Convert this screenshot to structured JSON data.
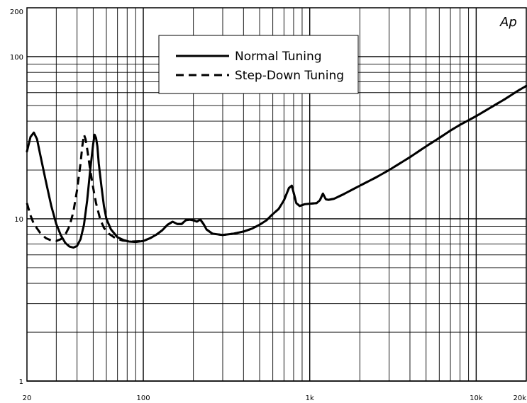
{
  "chart_data": {
    "type": "line",
    "title": "",
    "xlabel": "",
    "ylabel": "",
    "x_scale": "log",
    "y_scale": "log",
    "xlim": [
      20,
      20000
    ],
    "ylim": [
      1,
      200
    ],
    "grid": true,
    "legend_position": "top-center",
    "brand_mark": "Ap",
    "x_tick_labels": [
      {
        "value": 20,
        "label": "20"
      },
      {
        "value": 100,
        "label": "100"
      },
      {
        "value": 1000,
        "label": "1k"
      },
      {
        "value": 10000,
        "label": "10k"
      },
      {
        "value": 20000,
        "label": "20k"
      }
    ],
    "y_tick_labels": [
      {
        "value": 200,
        "label": "200"
      },
      {
        "value": 100,
        "label": "100"
      },
      {
        "value": 10,
        "label": "10"
      },
      {
        "value": 1,
        "label": "1"
      }
    ],
    "series": [
      {
        "name": "Normal Tuning",
        "style": "solid",
        "color": "#000000",
        "points": [
          [
            20,
            26
          ],
          [
            21,
            32
          ],
          [
            22,
            34
          ],
          [
            23,
            31
          ],
          [
            24,
            25
          ],
          [
            26,
            17
          ],
          [
            28,
            12
          ],
          [
            30,
            9.3
          ],
          [
            32,
            7.9
          ],
          [
            34,
            7.1
          ],
          [
            36,
            6.75
          ],
          [
            38,
            6.65
          ],
          [
            40,
            6.8
          ],
          [
            42,
            7.5
          ],
          [
            44,
            9.2
          ],
          [
            46,
            13
          ],
          [
            48,
            20
          ],
          [
            50,
            29
          ],
          [
            51,
            33
          ],
          [
            52,
            31.5
          ],
          [
            53,
            28
          ],
          [
            54,
            22
          ],
          [
            56,
            16
          ],
          [
            58,
            12
          ],
          [
            60,
            10
          ],
          [
            64,
            8.6
          ],
          [
            70,
            7.7
          ],
          [
            76,
            7.4
          ],
          [
            82,
            7.25
          ],
          [
            90,
            7.2
          ],
          [
            100,
            7.3
          ],
          [
            110,
            7.6
          ],
          [
            120,
            8.0
          ],
          [
            130,
            8.5
          ],
          [
            140,
            9.2
          ],
          [
            150,
            9.6
          ],
          [
            160,
            9.3
          ],
          [
            170,
            9.3
          ],
          [
            180,
            9.8
          ],
          [
            190,
            9.9
          ],
          [
            200,
            9.8
          ],
          [
            210,
            9.6
          ],
          [
            220,
            9.9
          ],
          [
            230,
            9.3
          ],
          [
            240,
            8.6
          ],
          [
            260,
            8.1
          ],
          [
            300,
            7.95
          ],
          [
            350,
            8.1
          ],
          [
            400,
            8.35
          ],
          [
            450,
            8.7
          ],
          [
            500,
            9.2
          ],
          [
            550,
            9.8
          ],
          [
            600,
            10.7
          ],
          [
            650,
            11.5
          ],
          [
            700,
            13
          ],
          [
            750,
            15.5
          ],
          [
            780,
            16
          ],
          [
            800,
            14.5
          ],
          [
            830,
            12.5
          ],
          [
            870,
            12
          ],
          [
            930,
            12.3
          ],
          [
            1000,
            12.4
          ],
          [
            1100,
            12.5
          ],
          [
            1150,
            13
          ],
          [
            1200,
            14.3
          ],
          [
            1250,
            13.2
          ],
          [
            1300,
            13.1
          ],
          [
            1400,
            13.3
          ],
          [
            1600,
            14.2
          ],
          [
            2000,
            16
          ],
          [
            2500,
            18
          ],
          [
            3000,
            20
          ],
          [
            4000,
            24
          ],
          [
            5000,
            28
          ],
          [
            6000,
            31.5
          ],
          [
            7000,
            35
          ],
          [
            8000,
            38
          ],
          [
            10000,
            43
          ],
          [
            12000,
            48
          ],
          [
            15000,
            55
          ],
          [
            18000,
            62
          ],
          [
            20000,
            66
          ]
        ]
      },
      {
        "name": "Step-Down Tuning",
        "style": "dashed",
        "color": "#000000",
        "points": [
          [
            20,
            12.5
          ],
          [
            21,
            10.5
          ],
          [
            22,
            9.3
          ],
          [
            24,
            8.2
          ],
          [
            26,
            7.6
          ],
          [
            28,
            7.35
          ],
          [
            30,
            7.3
          ],
          [
            32,
            7.5
          ],
          [
            34,
            8.0
          ],
          [
            36,
            9.0
          ],
          [
            38,
            11
          ],
          [
            40,
            15
          ],
          [
            42,
            22
          ],
          [
            43,
            28
          ],
          [
            44,
            33
          ],
          [
            45,
            31
          ],
          [
            46,
            27
          ],
          [
            48,
            20
          ],
          [
            50,
            15.5
          ],
          [
            52,
            12.5
          ],
          [
            55,
            10
          ],
          [
            58,
            8.8
          ],
          [
            62,
            8.1
          ],
          [
            68,
            7.6
          ],
          [
            75,
            7.35
          ],
          [
            85,
            7.25
          ],
          [
            100,
            7.3
          ],
          [
            110,
            7.6
          ],
          [
            120,
            8.0
          ],
          [
            130,
            8.5
          ],
          [
            140,
            9.2
          ],
          [
            150,
            9.6
          ],
          [
            160,
            9.3
          ],
          [
            170,
            9.3
          ],
          [
            180,
            9.8
          ],
          [
            190,
            9.9
          ],
          [
            200,
            9.8
          ],
          [
            210,
            9.6
          ],
          [
            220,
            9.9
          ],
          [
            230,
            9.3
          ],
          [
            240,
            8.6
          ],
          [
            260,
            8.1
          ],
          [
            300,
            7.95
          ],
          [
            350,
            8.1
          ],
          [
            400,
            8.35
          ],
          [
            450,
            8.7
          ],
          [
            500,
            9.2
          ],
          [
            550,
            9.8
          ],
          [
            600,
            10.7
          ],
          [
            650,
            11.5
          ],
          [
            700,
            13
          ],
          [
            750,
            15.5
          ],
          [
            780,
            16
          ],
          [
            800,
            14.5
          ],
          [
            830,
            12.5
          ],
          [
            870,
            12
          ],
          [
            930,
            12.3
          ],
          [
            1000,
            12.4
          ],
          [
            1100,
            12.5
          ],
          [
            1150,
            13
          ],
          [
            1200,
            14.3
          ],
          [
            1250,
            13.2
          ],
          [
            1300,
            13.1
          ],
          [
            1400,
            13.3
          ],
          [
            1600,
            14.2
          ],
          [
            2000,
            16
          ],
          [
            2500,
            18
          ],
          [
            3000,
            20
          ],
          [
            4000,
            24
          ],
          [
            5000,
            28
          ],
          [
            6000,
            31.5
          ],
          [
            7000,
            35
          ],
          [
            8000,
            38
          ],
          [
            10000,
            43
          ],
          [
            12000,
            48
          ],
          [
            15000,
            55
          ],
          [
            18000,
            62
          ],
          [
            20000,
            66
          ]
        ]
      }
    ]
  }
}
